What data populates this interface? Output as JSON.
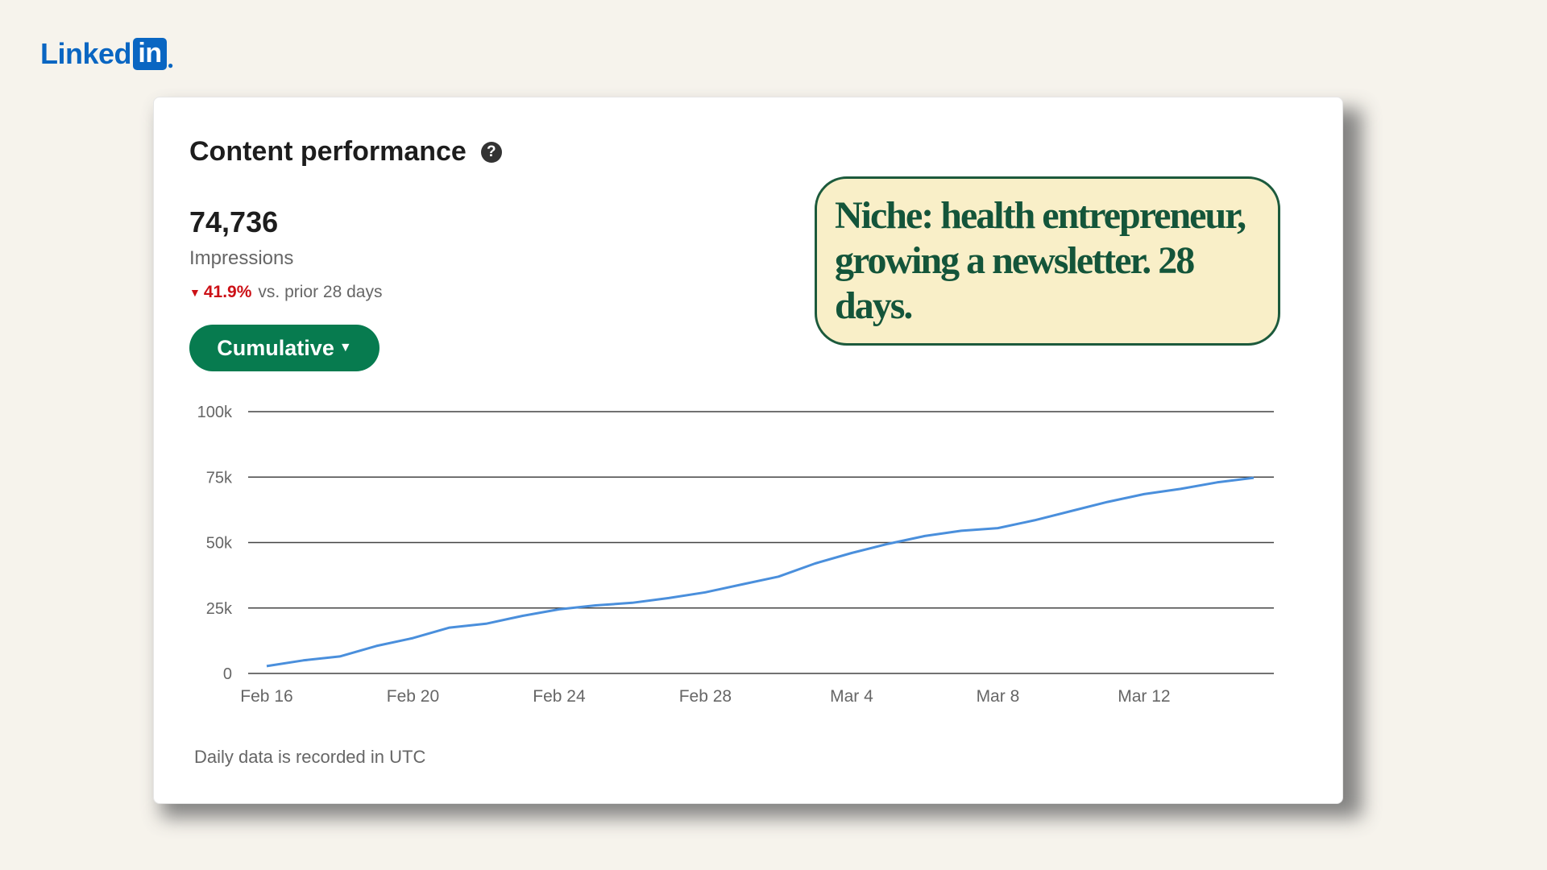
{
  "brand": {
    "logo_text": "Linked",
    "logo_box": "in"
  },
  "card": {
    "title": "Content performance",
    "help_icon": "?",
    "metric_value": "74,736",
    "metric_label": "Impressions",
    "change_pct": "41.9%",
    "change_text": "vs. prior 28 days",
    "change_direction": "down",
    "mode_button": "Cumulative",
    "footnote": "Daily data is recorded in UTC"
  },
  "annotation": "Niche: health entrepreneur, growing a newsletter. 28 days.",
  "colors": {
    "brand_blue": "#0a66c2",
    "button_green": "#077b4f",
    "negative_red": "#cc1016",
    "line_blue": "#4a8fdc",
    "note_fill": "#f9efc8",
    "note_border": "#1c5a3c"
  },
  "chart_data": {
    "type": "line",
    "title": "",
    "xlabel": "",
    "ylabel": "",
    "ylim": [
      0,
      100000
    ],
    "y_ticks": [
      0,
      25000,
      50000,
      75000,
      100000
    ],
    "y_tick_labels": [
      "0",
      "25k",
      "50k",
      "75k",
      "100k"
    ],
    "x_tick_labels": [
      "Feb 16",
      "Feb 20",
      "Feb 24",
      "Feb 28",
      "Mar 4",
      "Mar 8",
      "Mar 12"
    ],
    "x_tick_positions": [
      0,
      4,
      8,
      12,
      16,
      20,
      24
    ],
    "grid": true,
    "x": [
      "Feb 16",
      "Feb 17",
      "Feb 18",
      "Feb 19",
      "Feb 20",
      "Feb 21",
      "Feb 22",
      "Feb 23",
      "Feb 24",
      "Feb 25",
      "Feb 26",
      "Feb 27",
      "Feb 28",
      "Feb 29",
      "Mar 1",
      "Mar 2",
      "Mar 3",
      "Mar 4",
      "Mar 5",
      "Mar 6",
      "Mar 7",
      "Mar 8",
      "Mar 9",
      "Mar 10",
      "Mar 11",
      "Mar 12",
      "Mar 13",
      "Mar 14"
    ],
    "series": [
      {
        "values": [
          2800,
          5000,
          6500,
          10500,
          13500,
          17500,
          19000,
          22000,
          24500,
          26000,
          27000,
          28800,
          31000,
          34000,
          37000,
          42000,
          46000,
          49500,
          52500,
          54500,
          55500,
          58500,
          62000,
          65500,
          68500,
          70500,
          73000,
          74736
        ]
      }
    ]
  }
}
